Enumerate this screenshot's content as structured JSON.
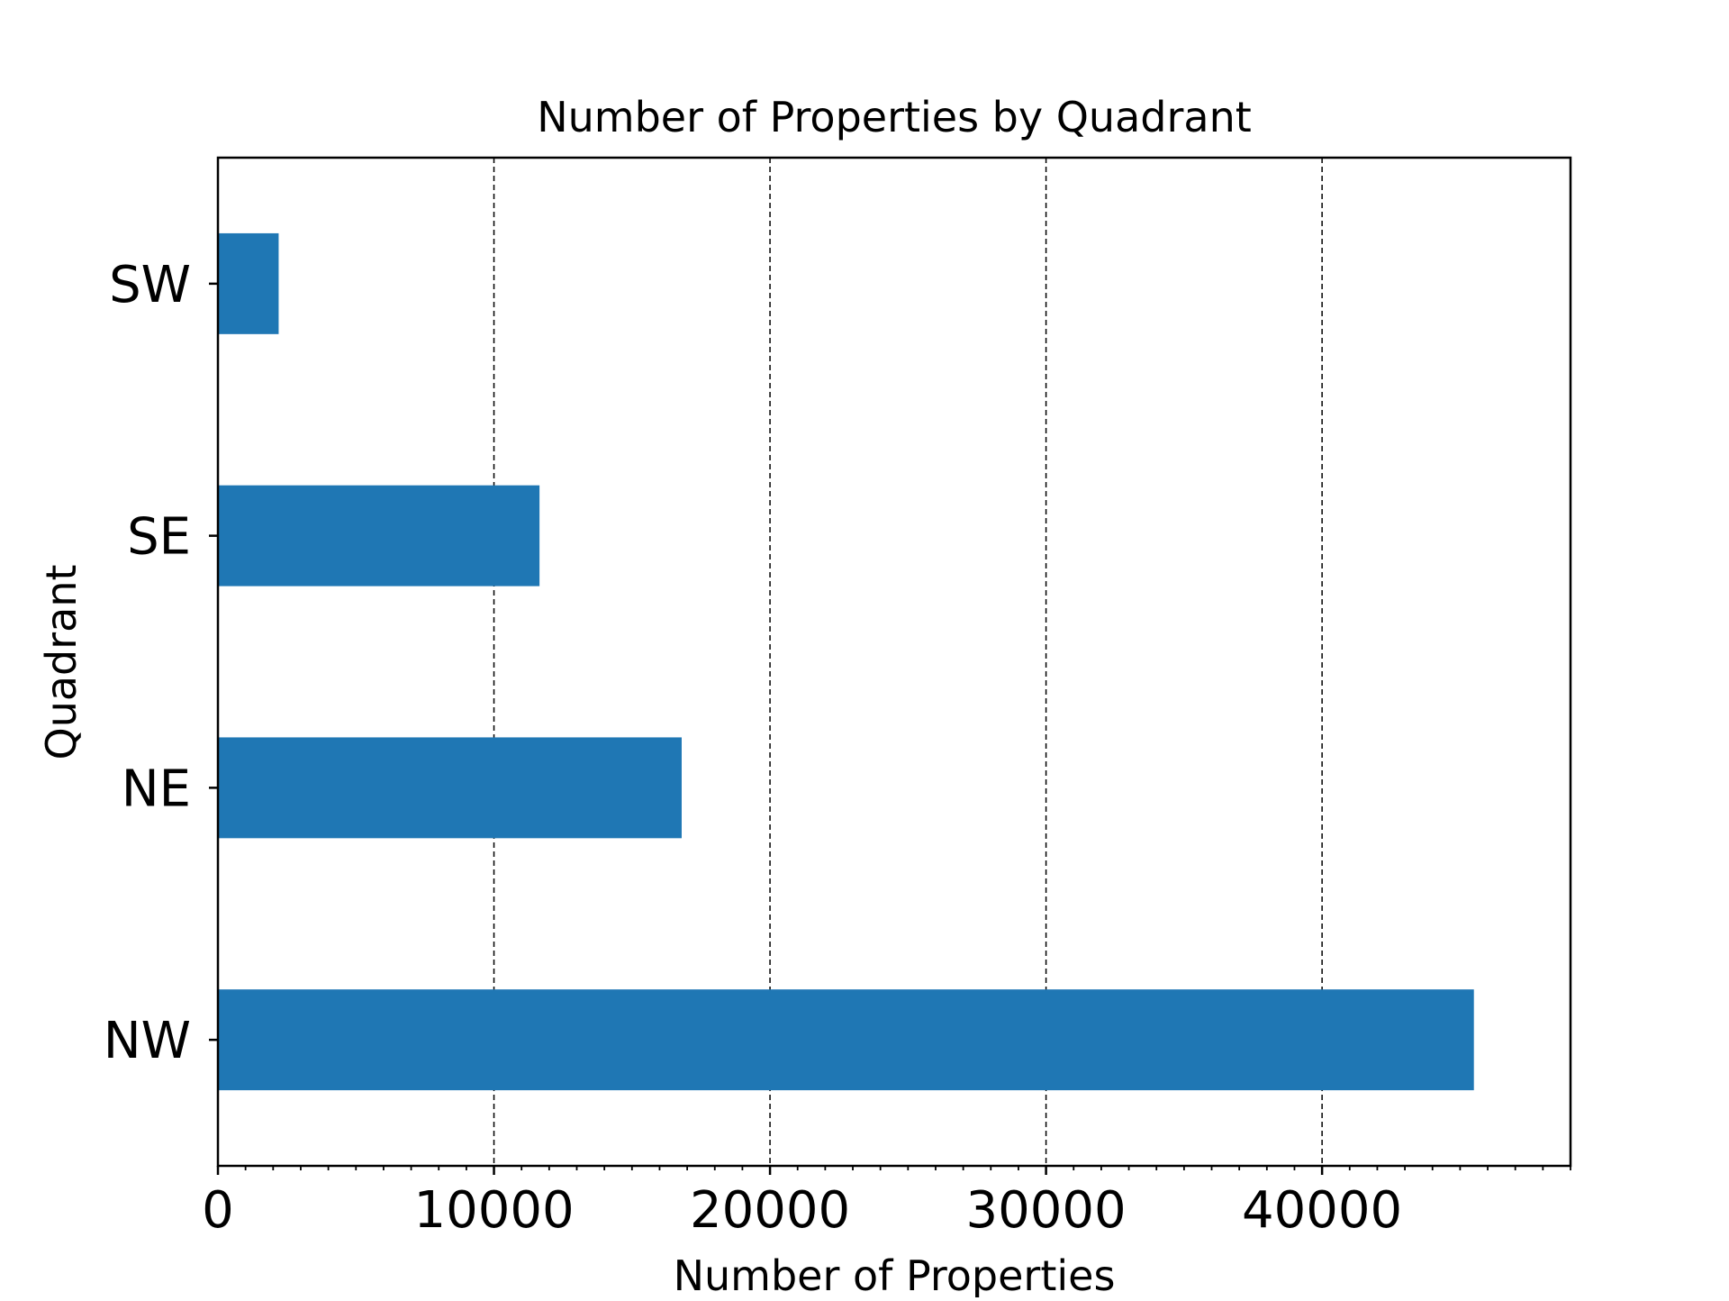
{
  "chart_data": {
    "type": "bar",
    "orientation": "horizontal",
    "title": "Number of Properties by Quadrant",
    "xlabel": "Number of Properties",
    "ylabel": "Quadrant",
    "categories": [
      "NW",
      "NE",
      "SE",
      "SW"
    ],
    "values": [
      45500,
      16800,
      11650,
      2200
    ],
    "xlim": [
      0,
      49000
    ],
    "xticks": [
      0,
      10000,
      20000,
      30000,
      40000
    ],
    "xtick_labels": [
      "0",
      "10000",
      "20000",
      "30000",
      "40000"
    ],
    "x_minor_tick_step": 1000,
    "grid": "x-major-dashed",
    "bar_color": "#1f77b4",
    "legend": "none"
  }
}
